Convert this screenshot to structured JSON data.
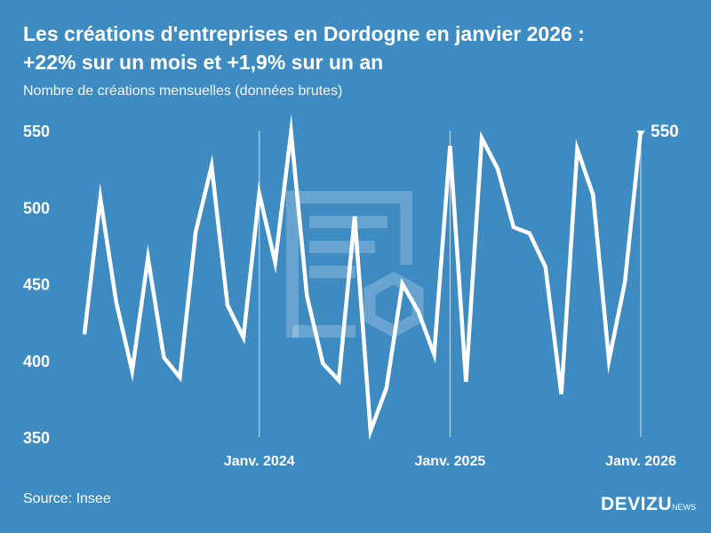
{
  "title_line1": "Les créations d'entreprises en Dordogne en janvier 2026 :",
  "title_line2": "+22% sur un mois et +1,9% sur un an",
  "subtitle": "Nombre de créations mensuelles (données brutes)",
  "source": "Source: Insee",
  "logo": {
    "main": "DEVIZU",
    "sub": "NEWS"
  },
  "colors": {
    "background": "#3e8bc2",
    "line": "#ffffff"
  },
  "chart_data": {
    "type": "line",
    "title": "Les créations d'entreprises en Dordogne en janvier 2026 : +22% sur un mois et +1,9% sur un an",
    "subtitle": "Nombre de créations mensuelles (données brutes)",
    "xlabel": "",
    "ylabel": "",
    "ylim": [
      350,
      550
    ],
    "yticks": [
      350,
      400,
      450,
      500,
      550
    ],
    "grid": false,
    "x": [
      "2023-02",
      "2023-03",
      "2023-04",
      "2023-05",
      "2023-06",
      "2023-07",
      "2023-08",
      "2023-09",
      "2023-10",
      "2023-11",
      "2023-12",
      "2024-01",
      "2024-02",
      "2024-03",
      "2024-04",
      "2024-05",
      "2024-06",
      "2024-07",
      "2024-08",
      "2024-09",
      "2024-10",
      "2024-11",
      "2024-12",
      "2025-01",
      "2025-02",
      "2025-03",
      "2025-04",
      "2025-05",
      "2025-06",
      "2025-07",
      "2025-08",
      "2025-09",
      "2025-10",
      "2025-11",
      "2025-12",
      "2026-01"
    ],
    "values": [
      417,
      506,
      438,
      393,
      467,
      402,
      389,
      484,
      527,
      436,
      415,
      509,
      464,
      549,
      442,
      398,
      387,
      494,
      354,
      382,
      450,
      432,
      404,
      540,
      386,
      545,
      525,
      487,
      483,
      461,
      378,
      538,
      508,
      400,
      451,
      550
    ],
    "xtick_labels": [
      {
        "x": "2024-01",
        "label": "Janv. 2024"
      },
      {
        "x": "2025-01",
        "label": "Janv. 2025"
      },
      {
        "x": "2026-01",
        "label": "Janv. 2026"
      }
    ],
    "last_value_label": "550"
  }
}
